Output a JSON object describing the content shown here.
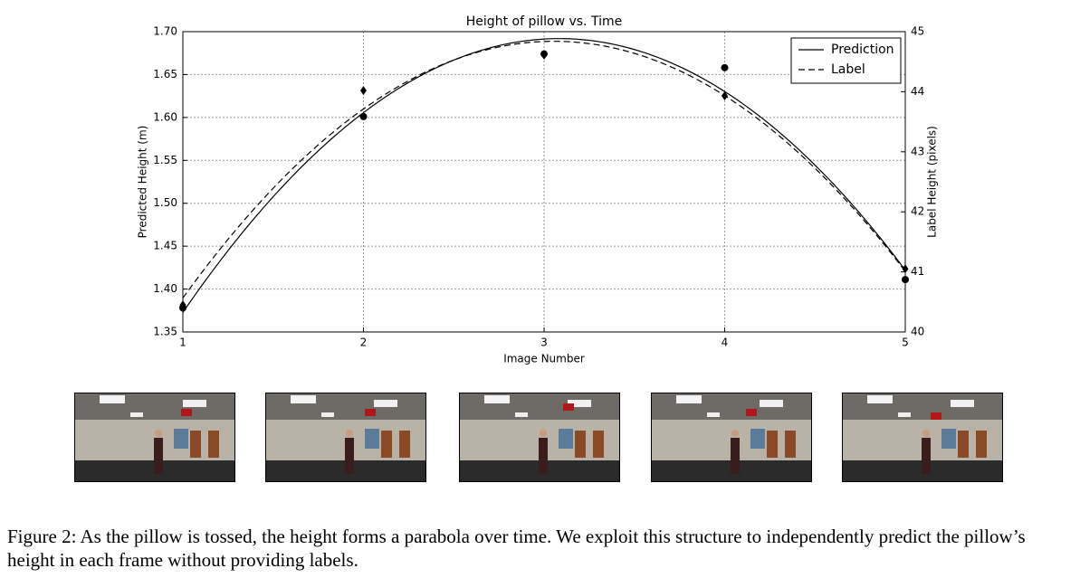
{
  "chart_data": {
    "type": "line",
    "title": "Height of pillow vs. Time",
    "x_label": "Image Number",
    "y_label": "Predicted Height (m)",
    "y2_label": "Label Height (pixels)",
    "x": [
      1,
      2,
      3,
      4,
      5
    ],
    "series": [
      {
        "name": "Prediction",
        "color": "#000000",
        "marker": "circle",
        "dash": "solid",
        "values": [
          1.378,
          1.601,
          1.674,
          1.658,
          1.411
        ]
      },
      {
        "name": "Label",
        "color": "#000000",
        "marker": "diamond",
        "dash": "dashed",
        "axis": "y2",
        "values": [
          40.45,
          44.02,
          44.61,
          43.93,
          41.05
        ]
      }
    ],
    "xlim": [
      1,
      5
    ],
    "xticks": [
      1,
      2,
      3,
      4,
      5
    ],
    "ylim": [
      1.35,
      1.7
    ],
    "yticks": [
      1.35,
      {
        "value": 1.4,
        "label": "1.40"
      },
      1.45,
      {
        "value": 1.5,
        "label": "1.50"
      },
      1.55,
      {
        "value": 1.6,
        "label": "1.60"
      },
      1.65,
      {
        "value": 1.7,
        "label": "1.70"
      }
    ],
    "y2lim": [
      40,
      45
    ],
    "y2ticks": [
      40,
      41,
      42,
      43,
      44,
      45
    ],
    "grid": true,
    "legend": "upper right"
  },
  "caption": "Figure 2: As the pillow is tossed, the height forms a parabola over time. We exploit this structure to independently predict the pillow’s height in each frame without providing labels."
}
